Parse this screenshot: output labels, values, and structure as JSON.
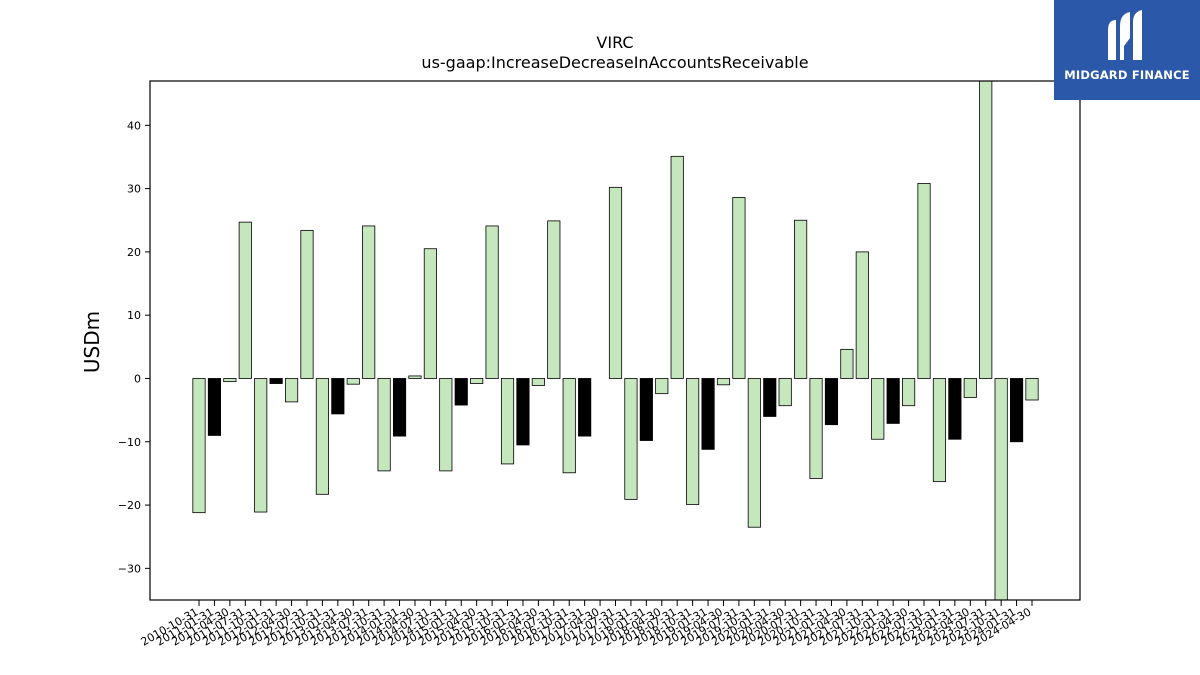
{
  "logo": {
    "text": "MIDGARD FINANCE"
  },
  "chart_data": {
    "type": "bar",
    "title": "VIRC",
    "subtitle": "us-gaap:IncreaseDecreaseInAccountsReceivable",
    "xlabel": "",
    "ylabel": "USDm",
    "ylim": [
      -35,
      47
    ],
    "yticks": [
      -30,
      -20,
      -10,
      0,
      10,
      20,
      30,
      40
    ],
    "grid": false,
    "colors": {
      "light": "#c6e6bd",
      "dark": "#000000"
    },
    "categories": [
      "2010-10-31",
      "2011-01-31",
      "2011-04-30",
      "2011-07-31",
      "2011-10-31",
      "2012-01-31",
      "2012-04-30",
      "2012-07-31",
      "2012-10-31",
      "2013-01-31",
      "2013-04-30",
      "2013-07-31",
      "2013-10-31",
      "2014-01-31",
      "2014-04-30",
      "2014-07-31",
      "2014-10-31",
      "2015-01-31",
      "2015-04-30",
      "2015-07-31",
      "2015-10-31",
      "2016-01-31",
      "2016-04-30",
      "2016-07-31",
      "2016-10-31",
      "2017-01-31",
      "2017-04-30",
      "2017-07-31",
      "2017-10-31",
      "2018-01-31",
      "2018-04-30",
      "2018-07-31",
      "2018-10-31",
      "2019-01-31",
      "2019-04-30",
      "2019-07-31",
      "2019-10-31",
      "2020-01-31",
      "2020-04-30",
      "2020-07-31",
      "2020-10-31",
      "2021-01-31",
      "2021-04-30",
      "2021-07-31",
      "2021-10-31",
      "2022-01-31",
      "2022-04-30",
      "2022-07-31",
      "2022-10-31",
      "2023-01-31",
      "2023-04-30",
      "2023-07-31",
      "2023-10-31",
      "2024-01-31",
      "2024-04-30"
    ],
    "values": [
      -21.2,
      -9.0,
      -0.5,
      24.7,
      -21.1,
      -0.8,
      -3.7,
      23.4,
      -18.3,
      -5.6,
      -0.9,
      24.1,
      -14.6,
      -9.1,
      0.4,
      20.5,
      -14.6,
      -4.2,
      -0.8,
      24.1,
      -13.5,
      -10.5,
      -1.1,
      24.9,
      -14.9,
      -9.1,
      null,
      30.2,
      -19.1,
      -9.8,
      -2.4,
      35.1,
      -19.9,
      -11.2,
      -1.0,
      28.6,
      -23.5,
      -6.0,
      -4.3,
      25.0,
      -15.8,
      -7.3,
      4.6,
      20.0,
      -9.6,
      -7.1,
      -4.3,
      30.8,
      -16.3,
      -9.6,
      -3.0,
      47.0,
      -35.0,
      -10.0,
      -3.4
    ],
    "bar_color": [
      "light",
      "dark",
      "light",
      "light",
      "light",
      "dark",
      "light",
      "light",
      "light",
      "dark",
      "light",
      "light",
      "light",
      "dark",
      "light",
      "light",
      "light",
      "dark",
      "light",
      "light",
      "light",
      "dark",
      "light",
      "light",
      "light",
      "dark",
      "light",
      "light",
      "light",
      "dark",
      "light",
      "light",
      "light",
      "dark",
      "light",
      "light",
      "light",
      "dark",
      "light",
      "light",
      "light",
      "dark",
      "light",
      "light",
      "light",
      "dark",
      "light",
      "light",
      "light",
      "dark",
      "light",
      "light",
      "light",
      "dark",
      "light"
    ]
  }
}
